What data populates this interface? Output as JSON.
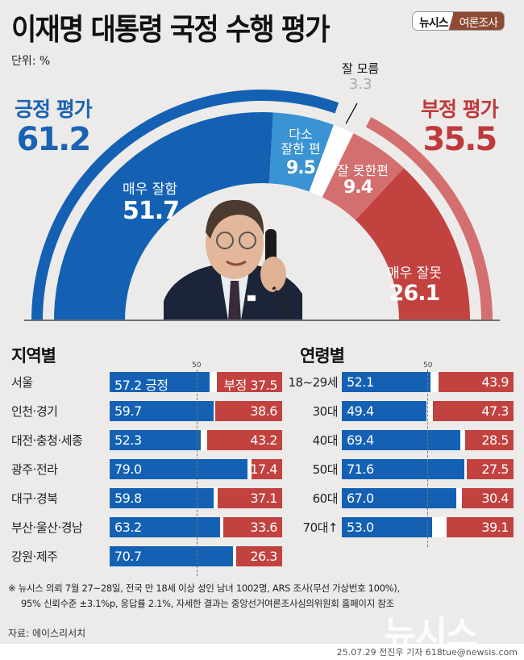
{
  "header": {
    "title": "이재명 대통령 국정 수행 평가",
    "badge_left": "뉴시스",
    "badge_right": "여론조사",
    "unit": "단위: %"
  },
  "colors": {
    "strong_positive": "#1461b4",
    "weak_positive": "#3a93d2",
    "unknown": "#ffffff",
    "weak_negative": "#d46f6f",
    "strong_negative": "#c24240",
    "background": "#ecebea"
  },
  "summary": {
    "positive_label": "긍정 평가",
    "positive_value": "61.2",
    "negative_label": "부정 평가",
    "negative_value": "35.5",
    "dont_know_label": "잘 모름",
    "dont_know_value": "3.3"
  },
  "segments": {
    "very_good_label": "매우 잘함",
    "very_good_value": "51.7",
    "somewhat_good_label_1": "다소",
    "somewhat_good_label_2": "잘한 편",
    "somewhat_good_value": "9.5",
    "somewhat_bad_label": "잘 못한편",
    "somewhat_bad_value": "9.4",
    "very_bad_label": "매우 잘못",
    "very_bad_value": "26.1"
  },
  "region": {
    "title": "지역별",
    "axis_label": "50",
    "positive_tag": "긍정",
    "negative_tag": "부정",
    "rows": [
      {
        "label": "서울",
        "pos": 57.2,
        "neg": 37.5
      },
      {
        "label": "인천·경기",
        "pos": 59.7,
        "neg": 38.6
      },
      {
        "label": "대전·충청·세종",
        "pos": 52.3,
        "neg": 43.2
      },
      {
        "label": "광주·전라",
        "pos": 79.0,
        "neg": 17.4
      },
      {
        "label": "대구·경북",
        "pos": 59.8,
        "neg": 37.1
      },
      {
        "label": "부산·울산·경남",
        "pos": 63.2,
        "neg": 33.6
      },
      {
        "label": "강원·제주",
        "pos": 70.7,
        "neg": 26.3
      }
    ]
  },
  "age": {
    "title": "연령별",
    "axis_label": "50",
    "rows": [
      {
        "label": "18~29세",
        "pos": 52.1,
        "neg": 43.9
      },
      {
        "label": "30대",
        "pos": 49.4,
        "neg": 47.3
      },
      {
        "label": "40대",
        "pos": 69.4,
        "neg": 28.5
      },
      {
        "label": "50대",
        "pos": 71.6,
        "neg": 27.5
      },
      {
        "label": "60대",
        "pos": 67.0,
        "neg": 30.4
      },
      {
        "label": "70대↑",
        "pos": 53.0,
        "neg": 39.1
      }
    ]
  },
  "footer": {
    "note_line1": "※ 뉴시스 의뢰 7월 27~28일, 전국 만 18세 이상 성인 남녀 1002명, ARS 조사(무선 가상번호 100%),",
    "note_line2": "95% 신뢰수준 ±3.1%p, 응답률 2.1%, 자세한 결과는 중앙선거여론조사심의위원회 홈페이지 참조",
    "source": "자료: 에이스리서치",
    "credit": "25.07.29 전진우 기자 618tue@newsis.com",
    "watermark": "뉴시스"
  },
  "chart_data": [
    {
      "type": "pie",
      "title": "이재명 대통령 국정 수행 평가",
      "subtitle": "semicircle donut, 단위: %",
      "categories": [
        "매우 잘함",
        "다소 잘한 편",
        "잘 모름",
        "잘 못한편",
        "매우 잘못"
      ],
      "values": [
        51.7,
        9.5,
        3.3,
        9.4,
        26.1
      ],
      "groups": [
        {
          "name": "긍정 평가",
          "value": 61.2
        },
        {
          "name": "잘 모름",
          "value": 3.3
        },
        {
          "name": "부정 평가",
          "value": 35.5
        }
      ]
    },
    {
      "type": "bar",
      "title": "지역별",
      "orientation": "horizontal",
      "categories": [
        "서울",
        "인천·경기",
        "대전·충청·세종",
        "광주·전라",
        "대구·경북",
        "부산·울산·경남",
        "강원·제주"
      ],
      "series": [
        {
          "name": "긍정",
          "values": [
            57.2,
            59.7,
            52.3,
            79.0,
            59.8,
            63.2,
            70.7
          ]
        },
        {
          "name": "부정",
          "values": [
            37.5,
            38.6,
            43.2,
            17.4,
            37.1,
            33.6,
            26.3
          ]
        }
      ],
      "reference_line": 50
    },
    {
      "type": "bar",
      "title": "연령별",
      "orientation": "horizontal",
      "categories": [
        "18~29세",
        "30대",
        "40대",
        "50대",
        "60대",
        "70대↑"
      ],
      "series": [
        {
          "name": "긍정",
          "values": [
            52.1,
            49.4,
            69.4,
            71.6,
            67.0,
            53.0
          ]
        },
        {
          "name": "부정",
          "values": [
            43.9,
            47.3,
            28.5,
            27.5,
            30.4,
            39.1
          ]
        }
      ],
      "reference_line": 50
    }
  ]
}
